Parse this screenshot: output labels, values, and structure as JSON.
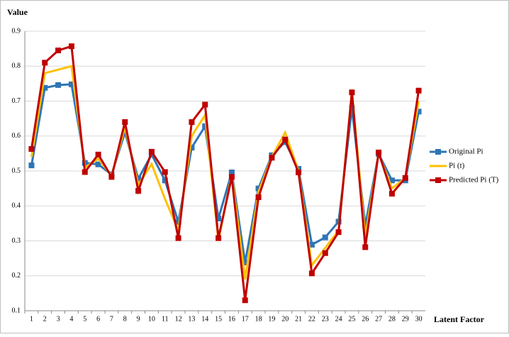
{
  "chart_data": {
    "type": "line",
    "y_label": "Value",
    "x_label": "Latent  Factor",
    "categories": [
      1,
      2,
      3,
      4,
      5,
      6,
      7,
      8,
      9,
      10,
      11,
      12,
      13,
      14,
      15,
      16,
      17,
      18,
      19,
      20,
      21,
      22,
      23,
      24,
      25,
      26,
      27,
      28,
      29,
      30
    ],
    "ylim": [
      0.1,
      0.9
    ],
    "yticks": [
      0.1,
      0.2,
      0.3,
      0.4,
      0.5,
      0.6,
      0.7,
      0.8,
      0.9
    ],
    "grid": true,
    "legend": "right",
    "series": [
      {
        "name": "Original Pi",
        "color": "#2e75b6",
        "marker": "square",
        "values": [
          0.516,
          0.738,
          0.746,
          0.748,
          0.523,
          0.519,
          0.49,
          0.61,
          0.478,
          0.547,
          0.473,
          0.354,
          0.567,
          0.628,
          0.364,
          0.496,
          0.238,
          0.45,
          0.545,
          0.583,
          0.506,
          0.289,
          0.31,
          0.355,
          0.68,
          0.344,
          0.549,
          0.473,
          0.473,
          0.67
        ]
      },
      {
        "name": "Pi (t)",
        "color": "#ffc000",
        "marker": "none",
        "values": [
          0.54,
          0.78,
          0.79,
          0.8,
          0.51,
          0.535,
          0.487,
          0.625,
          0.46,
          0.52,
          0.42,
          0.33,
          0.6,
          0.66,
          0.3,
          0.49,
          0.19,
          0.44,
          0.54,
          0.61,
          0.5,
          0.23,
          0.28,
          0.33,
          0.73,
          0.31,
          0.55,
          0.45,
          0.48,
          0.7
        ]
      },
      {
        "name": "Predicted Pi (T)",
        "color": "#c00000",
        "marker": "square",
        "values": [
          0.563,
          0.81,
          0.845,
          0.857,
          0.497,
          0.547,
          0.483,
          0.64,
          0.443,
          0.555,
          0.497,
          0.308,
          0.64,
          0.69,
          0.308,
          0.483,
          0.13,
          0.425,
          0.538,
          0.59,
          0.496,
          0.207,
          0.265,
          0.325,
          0.725,
          0.282,
          0.553,
          0.435,
          0.48,
          0.73
        ]
      }
    ]
  }
}
